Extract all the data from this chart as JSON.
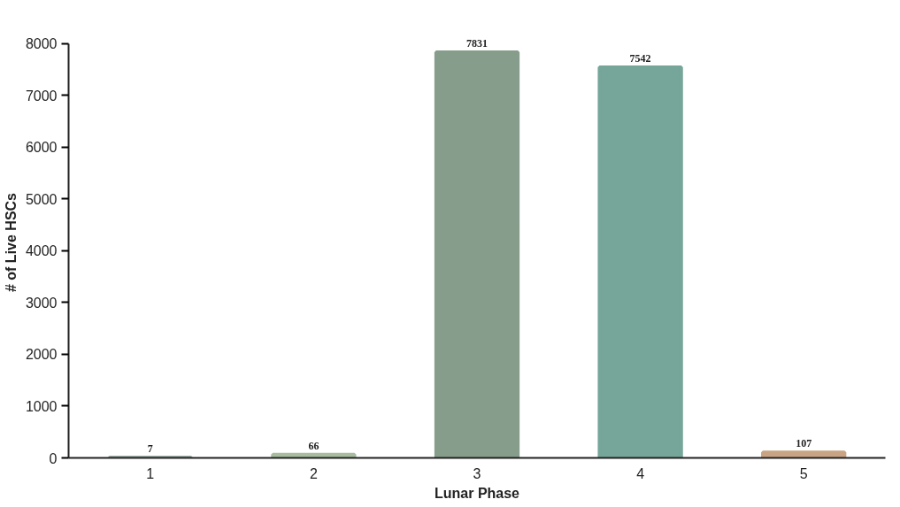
{
  "chart_data": {
    "type": "bar",
    "xlabel": "Lunar Phase",
    "ylabel": "# of Live HSCs",
    "categories": [
      "1",
      "2",
      "3",
      "4",
      "5"
    ],
    "values": [
      7,
      66,
      7831,
      7542,
      107
    ],
    "colors": [
      "#9aa8a0",
      "#a8bca0",
      "#879d8c",
      "#76a599",
      "#c8a484"
    ],
    "ylim": [
      0,
      8000
    ],
    "yticks": [
      0,
      1000,
      2000,
      3000,
      4000,
      5000,
      6000,
      7000,
      8000
    ],
    "data_labels": true,
    "grid": false
  }
}
